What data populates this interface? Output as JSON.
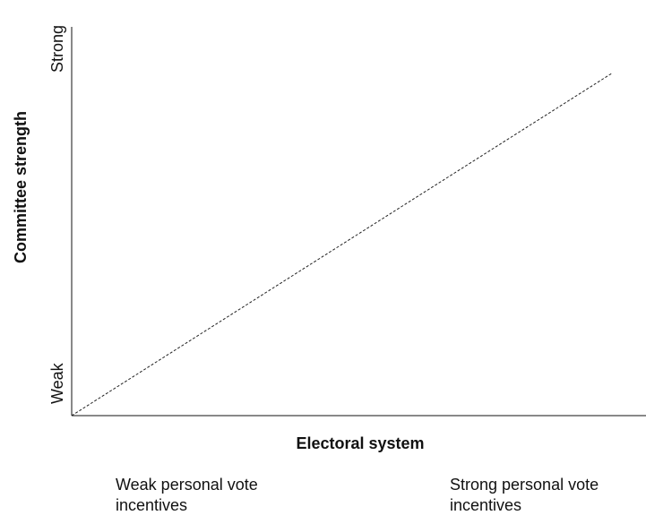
{
  "chart_data": {
    "type": "line",
    "title": "",
    "xlabel": "Electoral system",
    "ylabel": "Committee strength",
    "y_tick_labels": {
      "low": "Weak",
      "high": "Strong"
    },
    "x_category_labels": {
      "low": [
        "Weak personal vote",
        "incentives"
      ],
      "high": [
        "Strong personal vote",
        "incentives"
      ]
    },
    "series": [
      {
        "style": "dashed",
        "x": [
          0,
          0.94
        ],
        "y": [
          0,
          0.88
        ]
      }
    ],
    "xlim": [
      0,
      1
    ],
    "ylim": [
      0,
      1
    ],
    "grid": false,
    "legend": "none",
    "colors": {
      "axis": "#111111",
      "line": "#222222"
    }
  }
}
